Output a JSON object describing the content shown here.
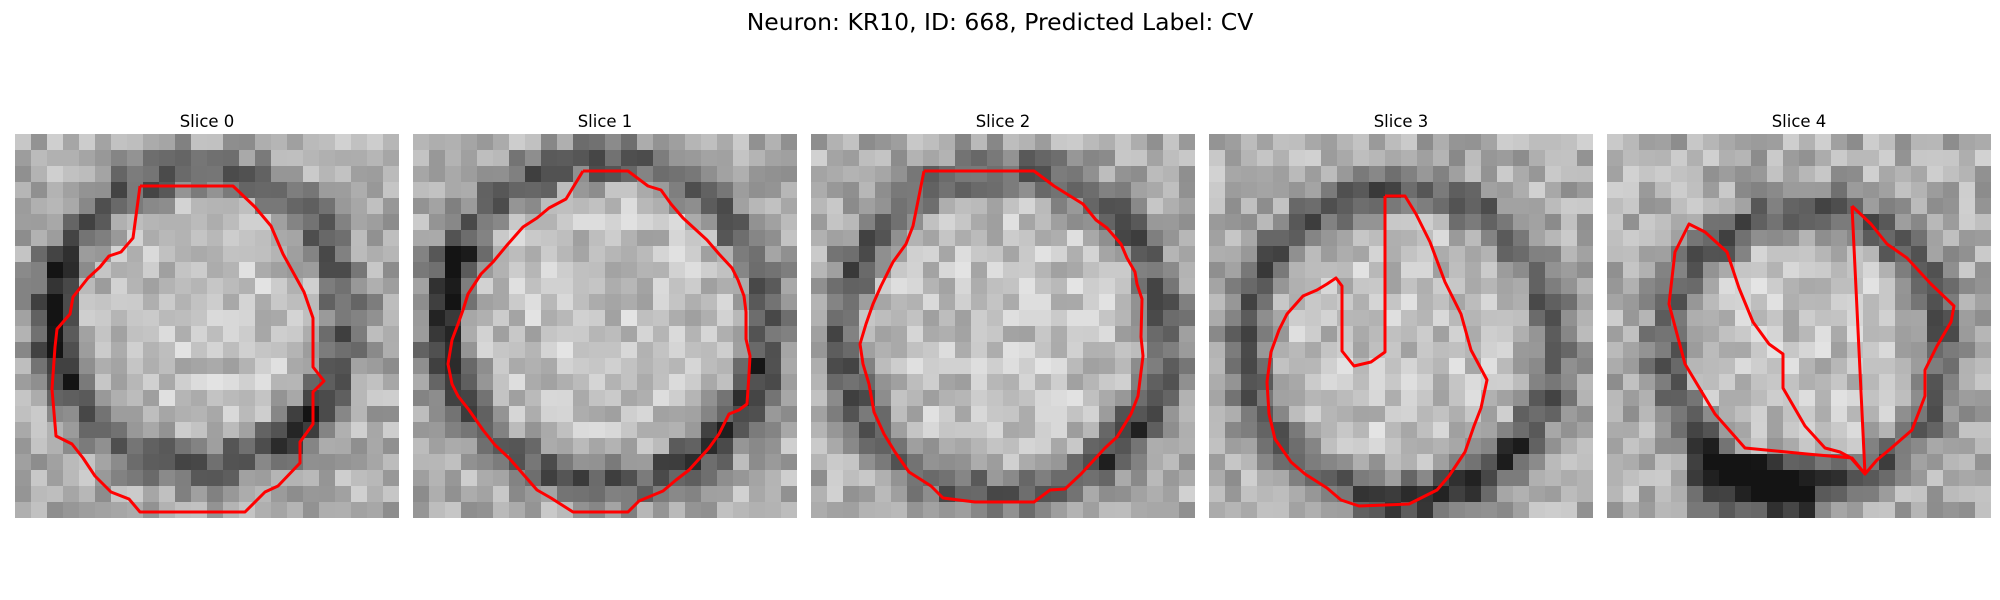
{
  "figure": {
    "title": "Neuron: KR10, ID: 668, Predicted Label: CV",
    "contour_color": "#ff0000"
  },
  "panels": [
    {
      "title": "Slice 0"
    },
    {
      "title": "Slice 1"
    },
    {
      "title": "Slice 2"
    },
    {
      "title": "Slice 3"
    },
    {
      "title": "Slice 4"
    }
  ]
}
